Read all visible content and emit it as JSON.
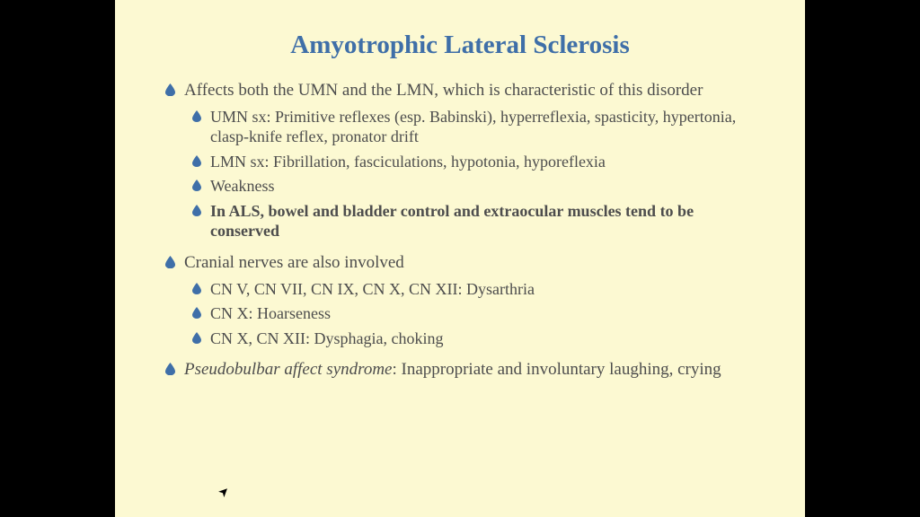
{
  "slide": {
    "background_color": "#fcf9d2",
    "letterbox_color": "#000000",
    "title": {
      "text": "Amyotrophic Lateral Sclerosis",
      "color": "#3f6fa8",
      "fontsize": 29
    },
    "body_color": "#4d4d4d",
    "body_fontsize_lvl1": 19,
    "body_fontsize_lvl2": 18,
    "bullet_fill": "#3f6fa8",
    "bullet_size_lvl1": 11,
    "bullet_size_lvl2": 10,
    "items": [
      {
        "text": "Affects both the UMN and the LMN, which is characteristic of this disorder",
        "bold": false,
        "children": [
          {
            "text": "UMN sx: Primitive reflexes (esp. Babinski), hyperreflexia, spasticity, hypertonia, clasp-knife reflex, pronator drift",
            "bold": false
          },
          {
            "text": "LMN sx: Fibrillation, fasciculations, hypotonia, hyporeflexia",
            "bold": false
          },
          {
            "text": "Weakness",
            "bold": false
          },
          {
            "text": "In ALS, bowel and bladder control and extraocular muscles tend to be conserved",
            "bold": true
          }
        ]
      },
      {
        "text": "Cranial nerves are also involved",
        "bold": false,
        "children": [
          {
            "text": "CN V, CN VII, CN IX, CN X, CN XII: Dysarthria",
            "bold": false
          },
          {
            "text": "CN X: Hoarseness",
            "bold": false
          },
          {
            "text": "CN X, CN XII: Dysphagia, choking",
            "bold": false
          }
        ]
      },
      {
        "italic_lead": "Pseudobulbar affect syndrome",
        "text": ": Inappropriate and involuntary laughing, crying",
        "bold": false,
        "children": []
      }
    ]
  }
}
